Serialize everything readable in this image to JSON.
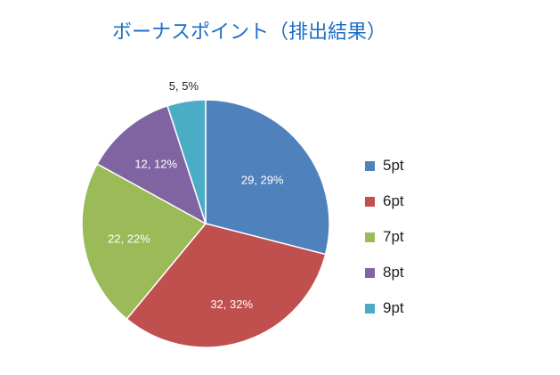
{
  "chart_data": {
    "type": "pie",
    "title": "ボーナスポイント（排出結果）",
    "categories": [
      "5pt",
      "6pt",
      "7pt",
      "8pt",
      "9pt"
    ],
    "values": [
      29,
      32,
      22,
      12,
      5
    ],
    "percentages": [
      29,
      32,
      22,
      12,
      5
    ],
    "data_labels": [
      "29, 29%",
      "32, 32%",
      "22, 22%",
      "12, 12%",
      "5, 5%"
    ],
    "colors": [
      "#4f81bd",
      "#c0504d",
      "#9bbb59",
      "#8064a2",
      "#4bacc6"
    ],
    "legend_position": "right"
  }
}
